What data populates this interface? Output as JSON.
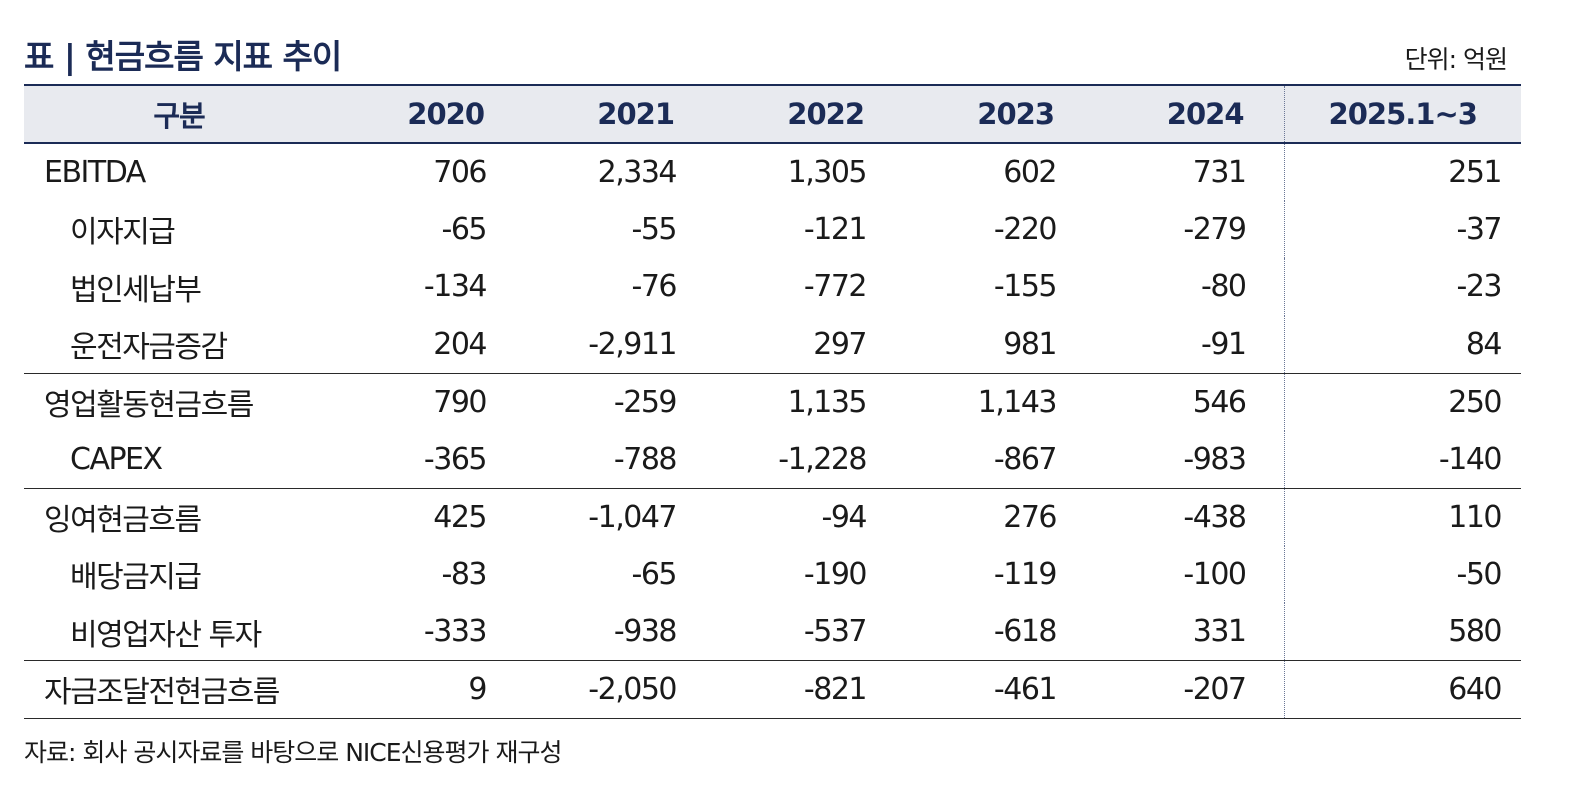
{
  "title": "표 | 현금흐름 지표 추이",
  "unit": "단위: 억원",
  "header": [
    "구분",
    "2020",
    "2021",
    "2022",
    "2023",
    "2024",
    "2025.1~3"
  ],
  "rows": [
    {
      "label": "EBITDA",
      "values": [
        "706",
        "2,334",
        "1,305",
        "602",
        "731",
        "251"
      ]
    },
    {
      "label": "이자지급",
      "values": [
        "-65",
        "-55",
        "-121",
        "-220",
        "-279",
        "-37"
      ]
    },
    {
      "label": "법인세납부",
      "values": [
        "-134",
        "-76",
        "-772",
        "-155",
        "-80",
        "-23"
      ]
    },
    {
      "label": "운전자금증감",
      "values": [
        "204",
        "-2,911",
        "297",
        "981",
        "-91",
        "84"
      ]
    },
    {
      "label": "영업활동현금흐름",
      "values": [
        "790",
        "-259",
        "1,135",
        "1,143",
        "546",
        "250"
      ]
    },
    {
      "label": "CAPEX",
      "values": [
        "-365",
        "-788",
        "-1,228",
        "-867",
        "-983",
        "-140"
      ]
    },
    {
      "label": "잉여현금흐름",
      "values": [
        "425",
        "-1,047",
        "-94",
        "276",
        "-438",
        "110"
      ]
    },
    {
      "label": "배당금지급",
      "values": [
        "-83",
        "-65",
        "-190",
        "-119",
        "-100",
        "-50"
      ]
    },
    {
      "label": "비영업자산 투자",
      "values": [
        "-333",
        "-938",
        "-537",
        "-618",
        "331",
        "580"
      ]
    },
    {
      "label": "자금조달전현금흐름",
      "values": [
        "9",
        "-2,050",
        "-821",
        "-461",
        "-207",
        "640"
      ]
    }
  ],
  "source": "자료: 회사 공시자료를 바탕으로 NICE신용평가 재구성"
}
